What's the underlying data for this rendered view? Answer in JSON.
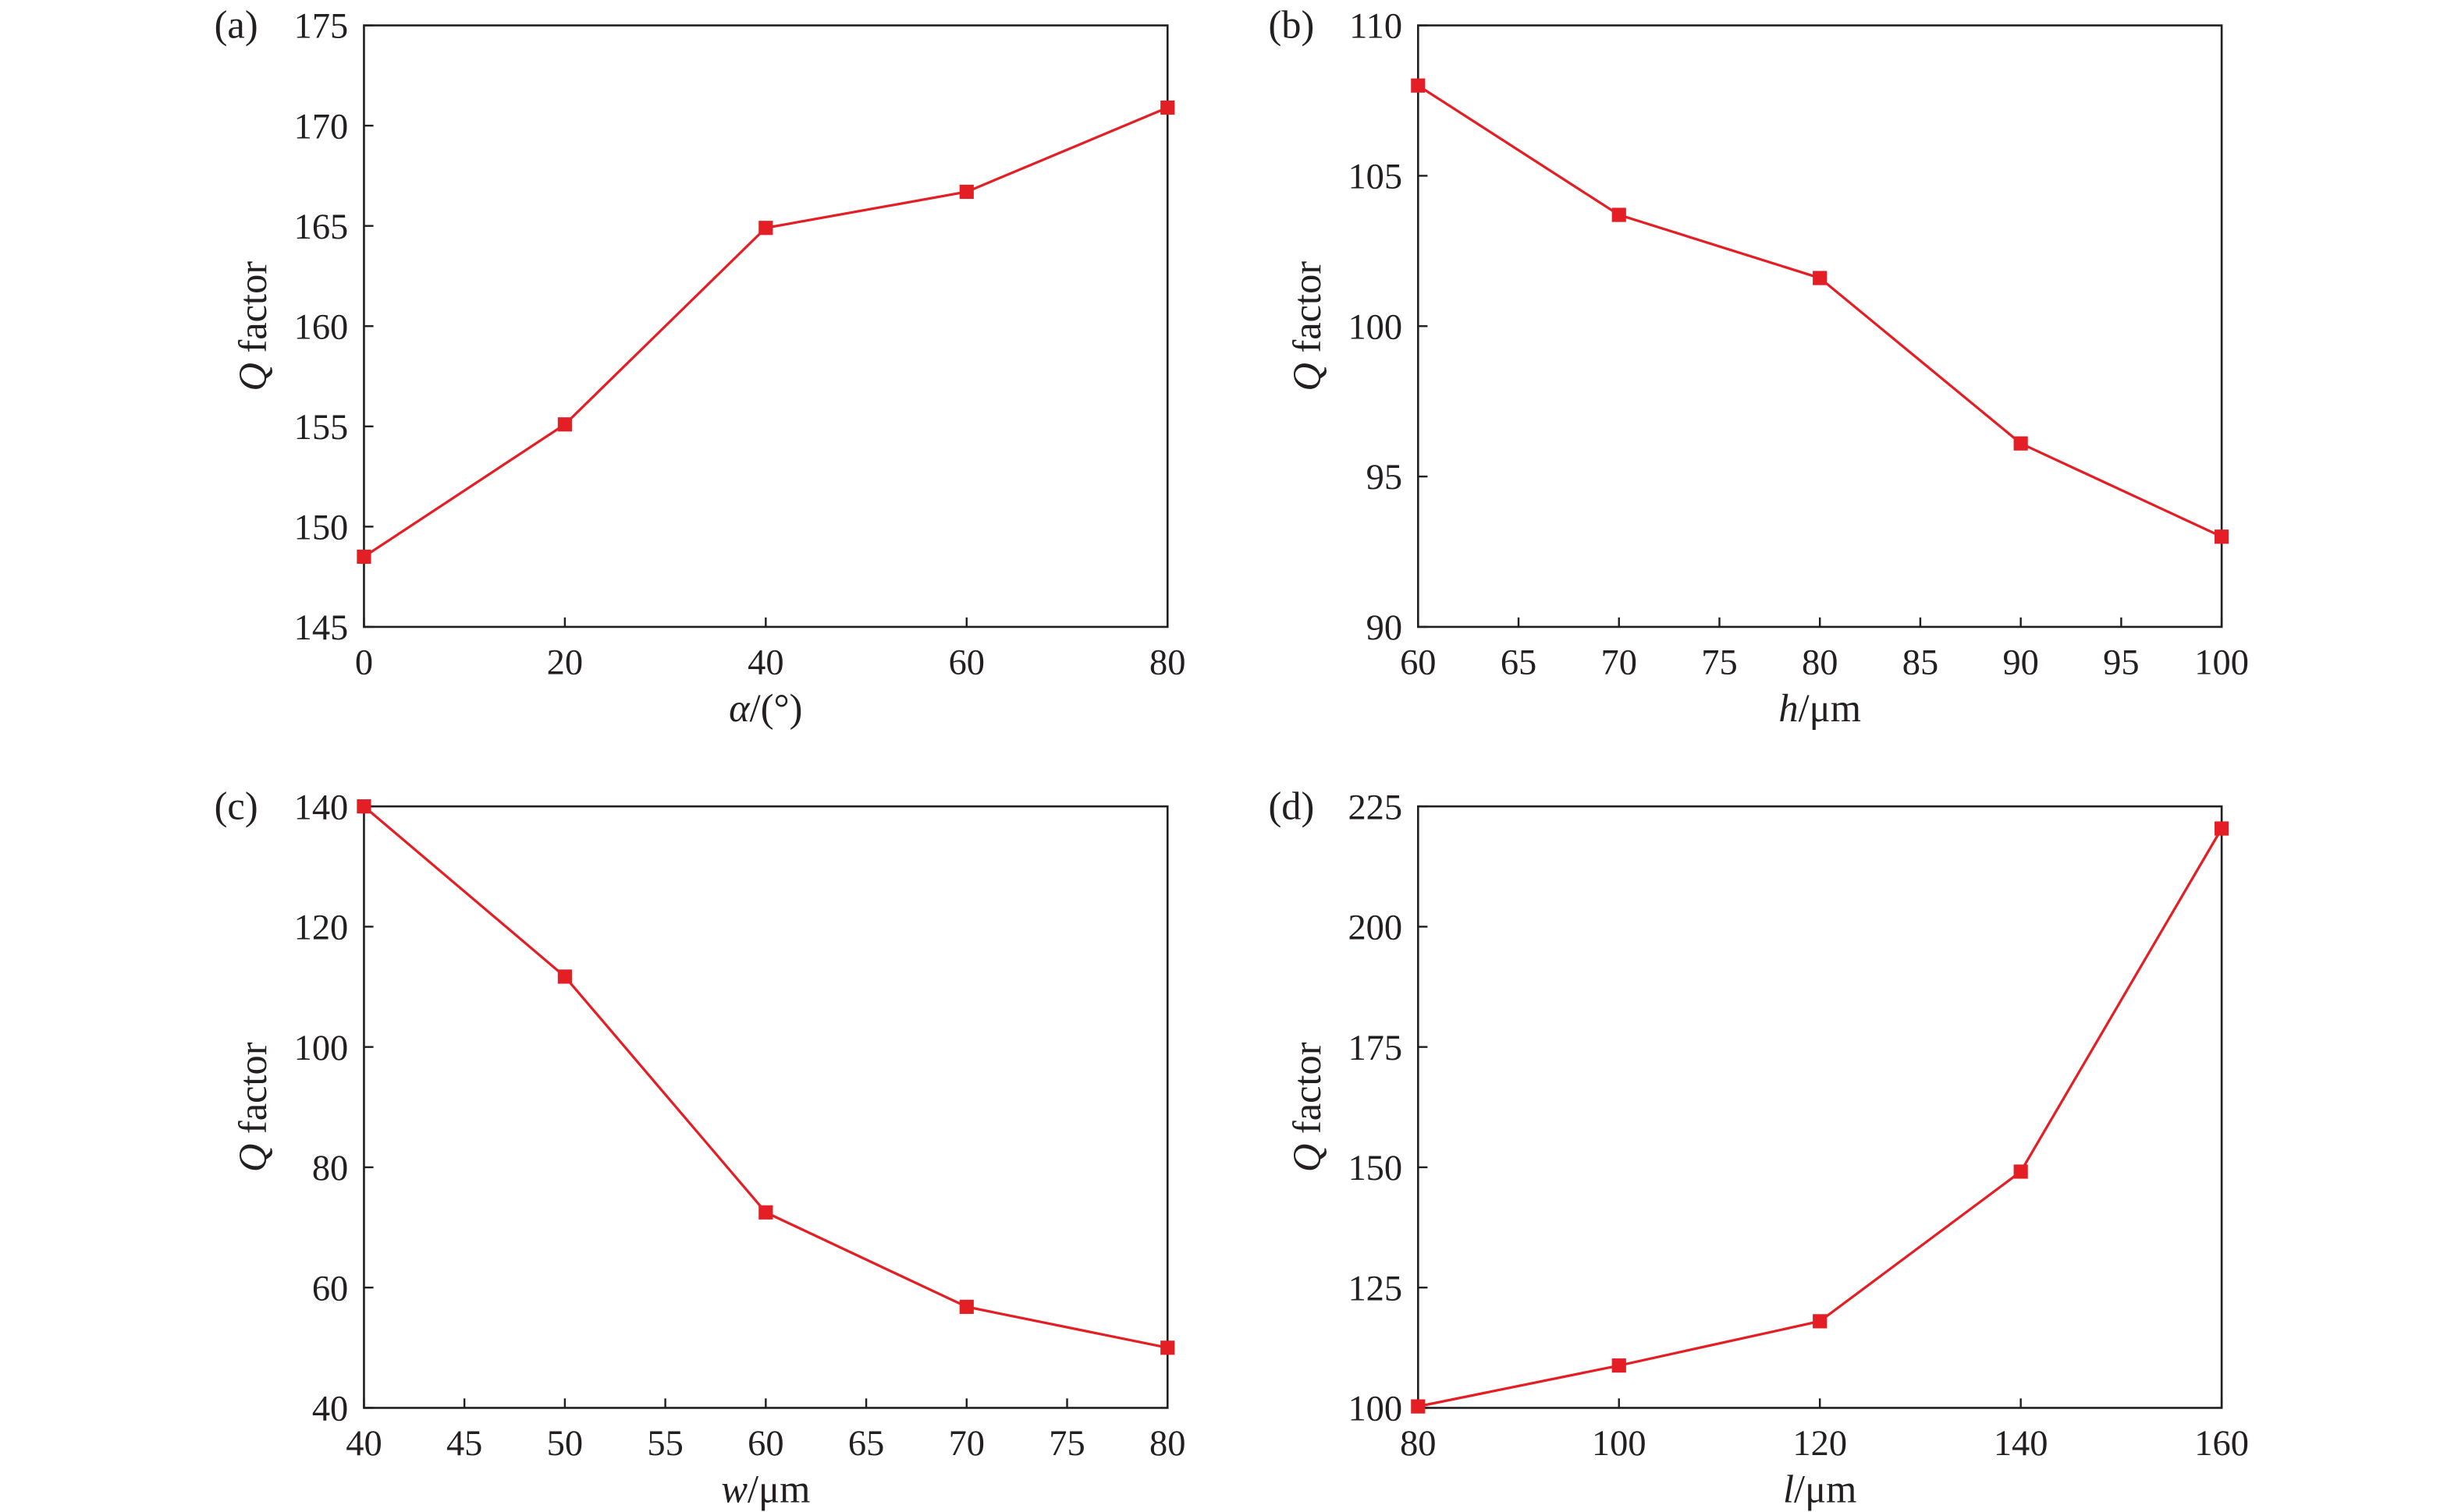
{
  "colors": {
    "series": "#e31e24",
    "axis": "#231f20"
  },
  "chart_data": [
    {
      "type": "line",
      "panel": "(a)",
      "xlabel_var": "α",
      "xlabel_unit": "/(°)",
      "ylabel_var": "Q",
      "ylabel_rest": " factor",
      "x": [
        0,
        20,
        40,
        60,
        80
      ],
      "y": [
        148.5,
        155.1,
        164.9,
        166.7,
        170.9
      ],
      "xlim": [
        0,
        80
      ],
      "ylim": [
        145,
        175
      ],
      "xticks": [
        0,
        20,
        40,
        60,
        80
      ],
      "yticks": [
        145,
        150,
        155,
        160,
        165,
        170,
        175
      ]
    },
    {
      "type": "line",
      "panel": "(b)",
      "xlabel_var": "h",
      "xlabel_unit": "/μm",
      "ylabel_var": "Q",
      "ylabel_rest": " factor",
      "x": [
        60,
        70,
        80,
        90,
        100
      ],
      "y": [
        108.0,
        103.7,
        101.6,
        96.1,
        93.0
      ],
      "xlim": [
        60,
        100
      ],
      "ylim": [
        90,
        110
      ],
      "xticks": [
        60,
        65,
        70,
        75,
        80,
        85,
        90,
        95,
        100
      ],
      "yticks": [
        90,
        95,
        100,
        105,
        110
      ]
    },
    {
      "type": "line",
      "panel": "(c)",
      "xlabel_var": "w",
      "xlabel_unit": "/μm",
      "ylabel_var": "Q",
      "ylabel_rest": " factor",
      "x": [
        40,
        50,
        60,
        70,
        80
      ],
      "y": [
        140.0,
        111.7,
        72.5,
        56.8,
        50.0
      ],
      "xlim": [
        40,
        80
      ],
      "ylim": [
        40,
        140
      ],
      "xticks": [
        40,
        45,
        50,
        55,
        60,
        65,
        70,
        75,
        80
      ],
      "yticks": [
        40,
        60,
        80,
        100,
        120,
        140
      ]
    },
    {
      "type": "line",
      "panel": "(d)",
      "xlabel_var": "l",
      "xlabel_unit": "/μm",
      "ylabel_var": "Q",
      "ylabel_rest": " factor",
      "x": [
        80,
        100,
        120,
        140,
        160
      ],
      "y": [
        100.3,
        108.8,
        118.0,
        149.1,
        220.4
      ],
      "xlim": [
        80,
        160
      ],
      "ylim": [
        100,
        225
      ],
      "xticks": [
        80,
        100,
        120,
        140,
        160
      ],
      "yticks": [
        100,
        125,
        150,
        175,
        200,
        225
      ]
    }
  ]
}
